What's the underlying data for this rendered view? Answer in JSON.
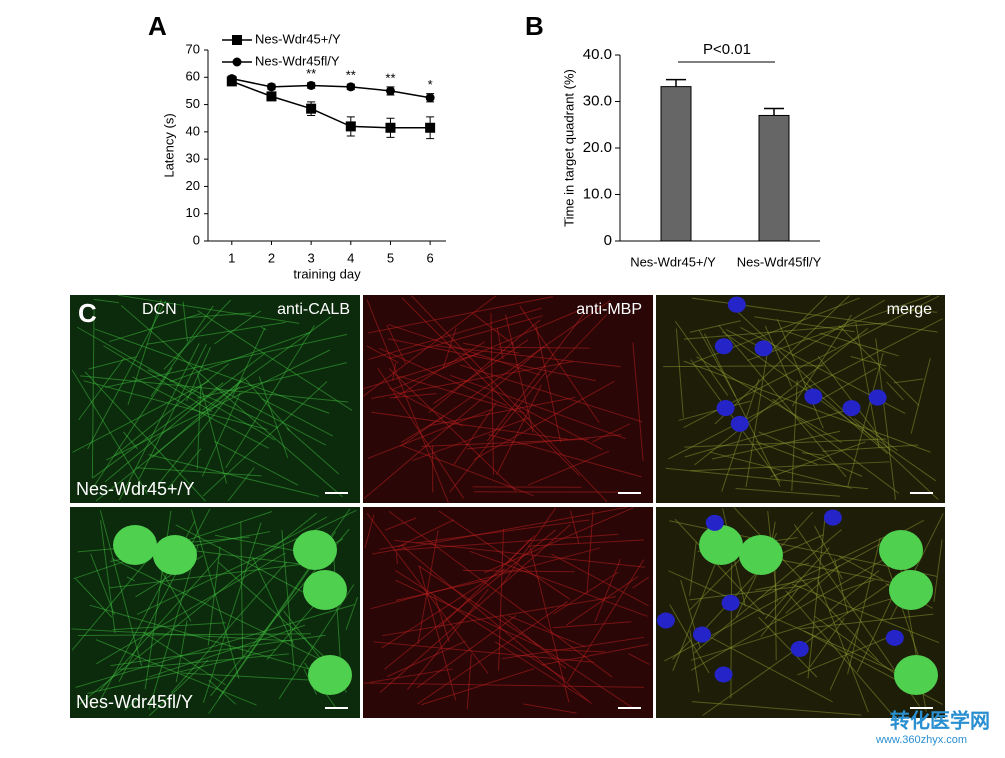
{
  "chart_data": [
    {
      "type": "line",
      "panel": "A",
      "xlabel": "training day",
      "ylabel": "Latency (s)",
      "x": [
        1,
        2,
        3,
        4,
        5,
        6
      ],
      "xlim": [
        0.4,
        6.4
      ],
      "xticks": [
        1,
        2,
        3,
        4,
        5,
        6
      ],
      "ylim": [
        0,
        70
      ],
      "yticks": [
        0,
        10,
        20,
        30,
        40,
        50,
        60,
        70
      ],
      "series": [
        {
          "name": "Nes-Wdr45+/Y",
          "color": "#000000",
          "marker": "square",
          "values": [
            58.5,
            53,
            48.5,
            42,
            41.5,
            41.5
          ],
          "errors": [
            1,
            1.5,
            2.5,
            3.5,
            3.5,
            4
          ]
        },
        {
          "name": "Nes-Wdr45fl/Y",
          "color": "#000000",
          "marker": "circle",
          "values": [
            59.5,
            56.5,
            57,
            56.5,
            55,
            52.5
          ],
          "errors": [
            1,
            1,
            1,
            1,
            1.5,
            1.5
          ]
        }
      ],
      "significance": [
        {
          "x": 3,
          "label": "**"
        },
        {
          "x": 4,
          "label": "**"
        },
        {
          "x": 5,
          "label": "**"
        },
        {
          "x": 6,
          "label": "*"
        }
      ]
    },
    {
      "type": "bar",
      "panel": "B",
      "ylabel": "Time in target quadrant (%)",
      "categories": [
        "Nes-Wdr45+/Y",
        "Nes-Wdr45fl/Y"
      ],
      "values": [
        33.2,
        27
      ],
      "errors": [
        1.5,
        1.5
      ],
      "color": "#666666",
      "ylim": [
        0,
        40
      ],
      "yticks": [
        0,
        {
          "value": 10,
          "label": "10.0"
        },
        {
          "value": 20,
          "label": "20.0"
        },
        {
          "value": 30,
          "label": "30.0"
        },
        {
          "value": 40,
          "label": "40.0"
        }
      ],
      "annotation": "P<0.01"
    }
  ],
  "panel_c": {
    "letter": "C",
    "region": "DCN",
    "channels": [
      "anti-CALB",
      "anti-MBP",
      "merge"
    ],
    "rows": [
      "Nes-Wdr45+/Y",
      "Nes-Wdr45fl/Y"
    ]
  },
  "watermark": {
    "name": "转化医学网",
    "url": "www.360zhyx.com"
  }
}
